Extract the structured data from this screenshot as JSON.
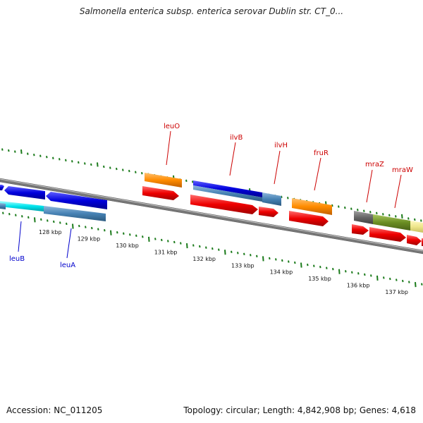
{
  "title": "Salmonella enterica subsp. enterica serovar Dublin str. CT_0...",
  "footer": {
    "accession": "Accession: NC_011205",
    "summary": "Topology: circular; Length: 4,842,908 bp; Genes: 4,618"
  },
  "scale_labels": [
    "128 kbp",
    "129 kbp",
    "130 kbp",
    "131 kbp",
    "132 kbp",
    "133 kbp",
    "134 kbp",
    "135 kbp",
    "136 kbp",
    "137 kbp"
  ],
  "gene_labels": [
    {
      "name": "leuB",
      "color": "#0000cc"
    },
    {
      "name": "leuA",
      "color": "#0000cc"
    },
    {
      "name": "leuO",
      "color": "#cc0000"
    },
    {
      "name": "ilvB",
      "color": "#cc0000"
    },
    {
      "name": "ilvH",
      "color": "#cc0000"
    },
    {
      "name": "fruR",
      "color": "#cc0000"
    },
    {
      "name": "mraZ",
      "color": "#cc0000"
    },
    {
      "name": "mraW",
      "color": "#cc0000"
    }
  ],
  "colors": {
    "backbone": "#808080",
    "tick_green": "#1a7a1a",
    "gene_blue": "#0000dd",
    "gene_steelblue": "#4682b4",
    "gene_cyan": "#00e5ee",
    "gene_orange": "#ff8c00",
    "gene_red": "#ee0000",
    "gene_gray": "#666666",
    "gene_olive": "#6b8e23",
    "gene_khaki": "#eee68b"
  }
}
